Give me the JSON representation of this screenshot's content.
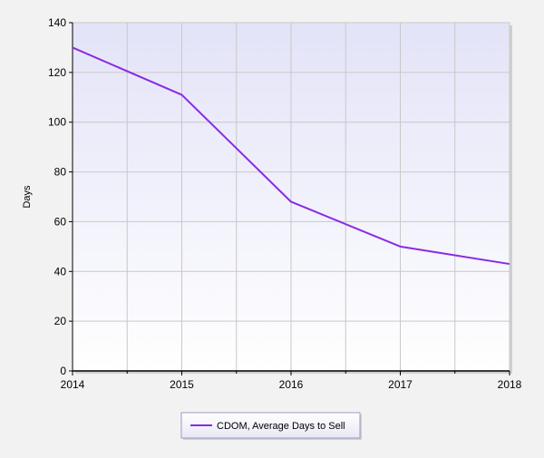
{
  "chart_data": {
    "type": "line",
    "title": "",
    "xlabel": "",
    "ylabel": "Days",
    "x": [
      2014,
      2015,
      2016,
      2017,
      2018
    ],
    "series": [
      {
        "name": "CDOM, Average Days to Sell",
        "values": [
          130,
          111,
          68,
          50,
          43
        ]
      }
    ],
    "xlim": [
      2014,
      2018
    ],
    "ylim": [
      0,
      140
    ],
    "yticks": [
      0,
      20,
      40,
      60,
      80,
      100,
      120,
      140
    ],
    "xticks": [
      2014,
      2015,
      2016,
      2017,
      2018
    ],
    "grid": true,
    "legend_position": "bottom-center",
    "colors": {
      "series": "#8a2be2",
      "plot_bg_top": "#e3e3f8",
      "plot_bg_bottom": "#ffffff",
      "grid": "#c8c8c8",
      "page_bg": "#f2f2f2"
    }
  }
}
